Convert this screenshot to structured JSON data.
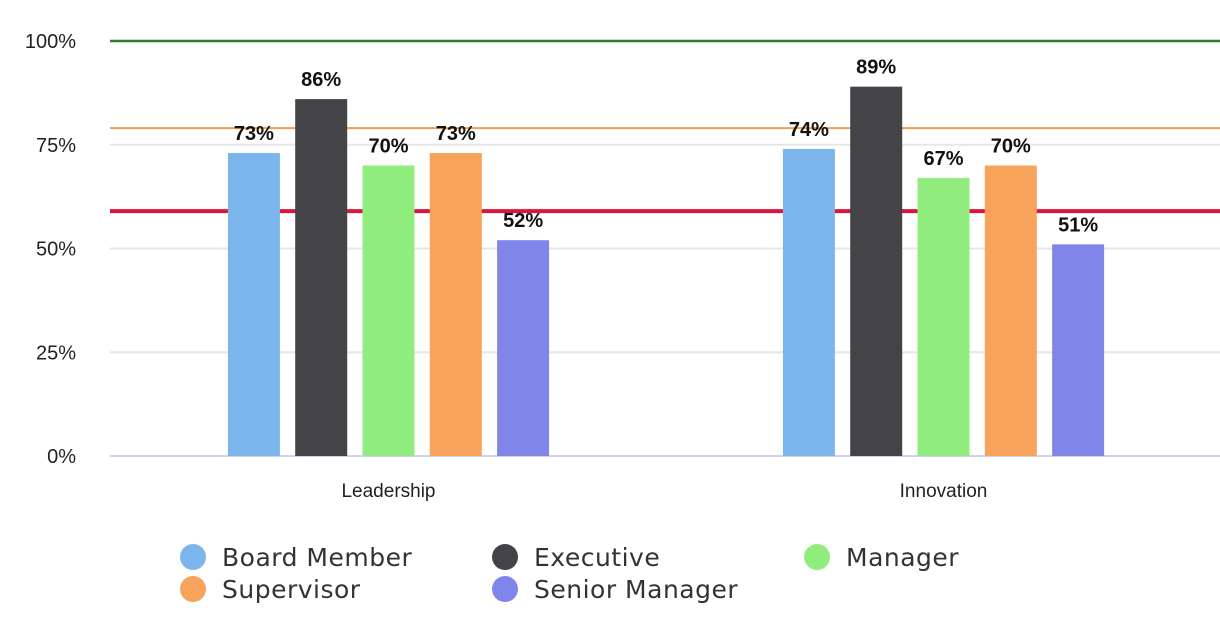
{
  "chart_data": {
    "type": "bar",
    "categories": [
      "Leadership",
      "Innovation"
    ],
    "series": [
      {
        "name": "Board Member",
        "values": [
          73,
          74
        ],
        "color": "#7cb5ec"
      },
      {
        "name": "Executive",
        "values": [
          86,
          89
        ],
        "color": "#434348"
      },
      {
        "name": "Manager",
        "values": [
          70,
          67
        ],
        "color": "#90ed7d"
      },
      {
        "name": "Supervisor",
        "values": [
          73,
          70
        ],
        "color": "#f7a35c"
      },
      {
        "name": "Senior Manager",
        "values": [
          52,
          51
        ],
        "color": "#8085e9"
      }
    ],
    "data_labels": [
      [
        "73%",
        "74%"
      ],
      [
        "86%",
        "89%"
      ],
      [
        "70%",
        "67%"
      ],
      [
        "73%",
        "70%"
      ],
      [
        "52%",
        "51%"
      ]
    ],
    "ylim": [
      0,
      100
    ],
    "yticks": [
      0,
      25,
      50,
      75,
      100
    ],
    "ytick_labels": [
      "0%",
      "25%",
      "50%",
      "75%",
      "100%"
    ],
    "reference_lines": [
      {
        "value": 100,
        "color": "#2e7d32"
      },
      {
        "value": 79,
        "color": "#f0a050"
      },
      {
        "value": 59,
        "color": "#dc143c"
      }
    ],
    "grid": true,
    "legend_placement": "bottom-left"
  }
}
